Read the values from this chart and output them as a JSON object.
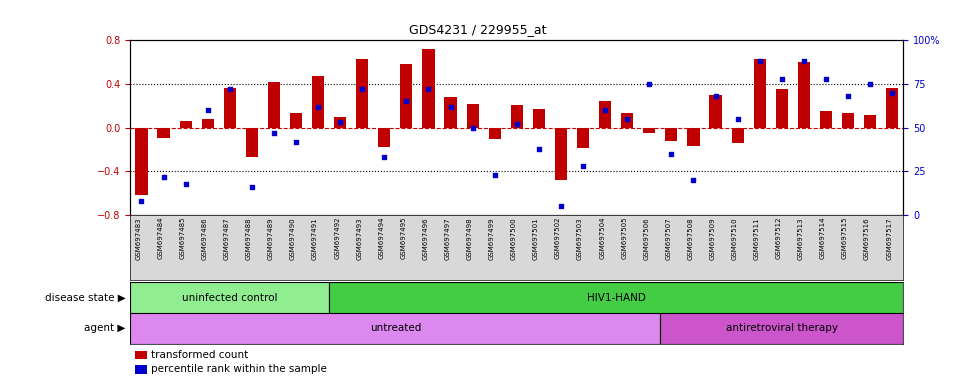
{
  "title": "GDS4231 / 229955_at",
  "samples": [
    "GSM697483",
    "GSM697484",
    "GSM697485",
    "GSM697486",
    "GSM697487",
    "GSM697488",
    "GSM697489",
    "GSM697490",
    "GSM697491",
    "GSM697492",
    "GSM697493",
    "GSM697494",
    "GSM697495",
    "GSM697496",
    "GSM697497",
    "GSM697498",
    "GSM697499",
    "GSM697500",
    "GSM697501",
    "GSM697502",
    "GSM697503",
    "GSM697504",
    "GSM697505",
    "GSM697506",
    "GSM697507",
    "GSM697508",
    "GSM697509",
    "GSM697510",
    "GSM697511",
    "GSM697512",
    "GSM697513",
    "GSM697514",
    "GSM697515",
    "GSM697516",
    "GSM697517"
  ],
  "bar_values": [
    -0.62,
    -0.09,
    0.06,
    0.08,
    0.36,
    -0.27,
    0.42,
    0.13,
    0.47,
    0.1,
    0.63,
    -0.18,
    0.58,
    0.72,
    0.28,
    0.22,
    -0.1,
    0.21,
    0.17,
    -0.48,
    -0.19,
    0.24,
    0.13,
    -0.05,
    -0.12,
    -0.17,
    0.3,
    -0.14,
    0.63,
    0.35,
    0.6,
    0.15,
    0.13,
    0.12,
    0.36
  ],
  "dot_values": [
    8,
    22,
    18,
    60,
    72,
    16,
    47,
    42,
    62,
    53,
    72,
    33,
    65,
    72,
    62,
    50,
    23,
    52,
    38,
    5,
    28,
    60,
    55,
    75,
    35,
    20,
    68,
    55,
    88,
    78,
    88,
    78,
    68,
    75,
    70
  ],
  "bar_color": "#c00000",
  "dot_color": "#0000cc",
  "ylim": [
    -0.8,
    0.8
  ],
  "y2lim": [
    0,
    100
  ],
  "yticks": [
    -0.8,
    -0.4,
    0.0,
    0.4,
    0.8
  ],
  "y2ticks": [
    0,
    25,
    50,
    75,
    100
  ],
  "hline_color": "#cc0000",
  "dotted_color": "black",
  "dotted_vals": [
    -0.4,
    0.4
  ],
  "disease_state_groups": [
    {
      "label": "uninfected control",
      "start": 0,
      "end": 9,
      "color": "#90ee90"
    },
    {
      "label": "HIV1-HAND",
      "start": 9,
      "end": 35,
      "color": "#44cc44"
    }
  ],
  "agent_groups": [
    {
      "label": "untreated",
      "start": 0,
      "end": 24,
      "color": "#dd88ee"
    },
    {
      "label": "antiretroviral therapy",
      "start": 24,
      "end": 35,
      "color": "#cc55cc"
    }
  ],
  "legend_items": [
    {
      "label": "transformed count",
      "color": "#c00000"
    },
    {
      "label": "percentile rank within the sample",
      "color": "#0000cc"
    }
  ],
  "row_label_disease": "disease state",
  "row_label_agent": "agent",
  "xtick_bg": "#d8d8d8"
}
